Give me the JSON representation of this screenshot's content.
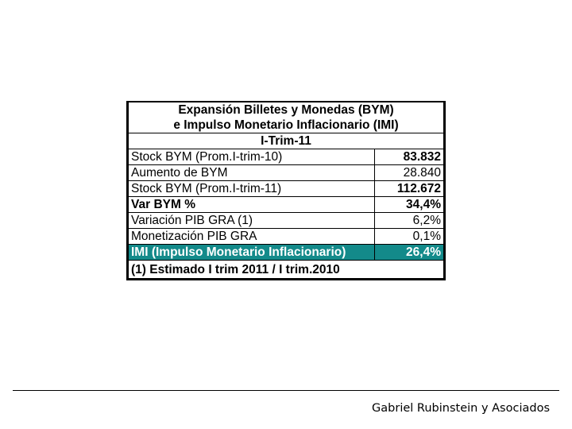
{
  "table": {
    "title_line1": "Expansión Billetes y Monedas (BYM)",
    "title_line2": "e Impulso Monetario Inflacionario (IMI)",
    "period": "I-Trim-11",
    "rows": [
      {
        "label": "Stock BYM (Prom.I-trim-10)",
        "value": "83.832"
      },
      {
        "label": "Aumento de BYM",
        "value": "28.840"
      },
      {
        "label": "Stock BYM (Prom.I-trim-11)",
        "value": "112.672"
      },
      {
        "label": "Var BYM %",
        "value": "34,4%"
      },
      {
        "label": "Variación PIB GRA (1)",
        "value": "6,2%"
      },
      {
        "label": "Monetización PIB GRA",
        "value": "0,1%"
      },
      {
        "label": "IMI (Impulso Monetario Inflacionario)",
        "value": "26,4%"
      }
    ],
    "note": "(1) Estimado I trim 2011 / I trim.2010",
    "highlight_color": "#138a8a"
  },
  "footer": {
    "text": "Gabriel Rubinstein y Asociados"
  }
}
